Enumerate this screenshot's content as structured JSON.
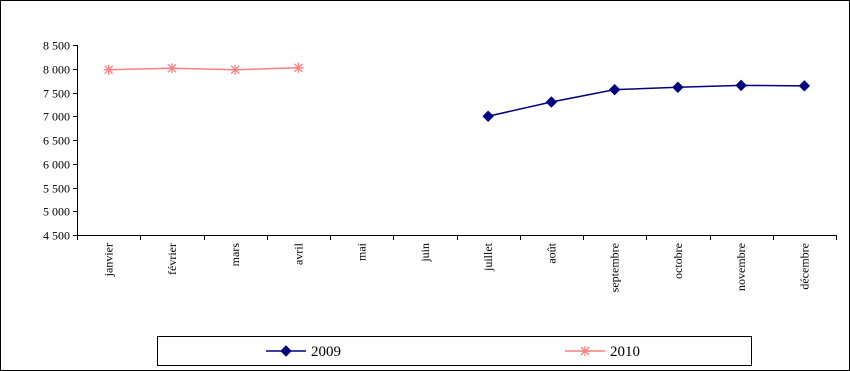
{
  "chart_data": {
    "type": "line",
    "categories": [
      "janvier",
      "février",
      "mars",
      "avril",
      "mai",
      "juin",
      "juillet",
      "août",
      "septembre",
      "octobre",
      "novembre",
      "décembre"
    ],
    "ylim": [
      4500,
      8500
    ],
    "ytick_step": 500,
    "ytick_labels": [
      "4 500",
      "5 000",
      "5 500",
      "6 000",
      "6 500",
      "7 000",
      "7 500",
      "8 000",
      "8 500"
    ],
    "grid": false,
    "legend_position": "bottom",
    "series": [
      {
        "name": "2009",
        "color": "#000080",
        "marker": "diamond",
        "values": [
          null,
          null,
          null,
          null,
          null,
          null,
          7000,
          7300,
          7560,
          7610,
          7650,
          7640
        ]
      },
      {
        "name": "2010",
        "color": "#FF8080",
        "marker": "asterisk",
        "values": [
          7980,
          8010,
          7980,
          8020,
          null,
          null,
          null,
          null,
          null,
          null,
          null,
          null
        ]
      }
    ]
  }
}
